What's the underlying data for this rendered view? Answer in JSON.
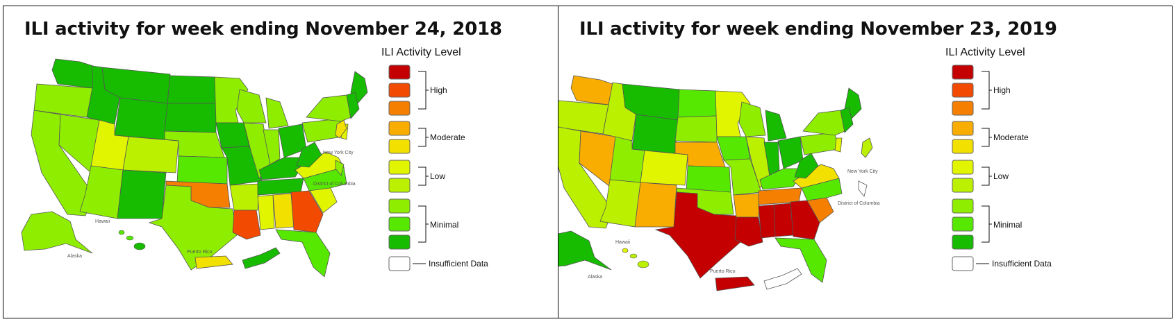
{
  "colors": {
    "high_1": "#c40000",
    "high_2": "#f24a00",
    "high_3": "#f57f00",
    "moderate_1": "#f9ad00",
    "moderate_2": "#f2e000",
    "low_1": "#e1f500",
    "low_2": "#bbf000",
    "minimal_1": "#8fee00",
    "minimal_2": "#56e800",
    "minimal_3": "#17bb00",
    "insufficient": "#ffffff"
  },
  "left": {
    "title": "ILI activity for week ending November 24, 2018",
    "legend_title": "ILI Activity Level",
    "legend_groups": {
      "high": "High",
      "moderate": "Moderate",
      "low": "Low",
      "minimal": "Minimal",
      "insufficient": "Insufficient Data"
    },
    "map_labels": {
      "new_york_city": "New York City",
      "district_of_columbia": "District of Columbia",
      "hawaii": "Hawaii",
      "alaska": "Alaska",
      "puerto_rico": "Puerto Rico"
    }
  },
  "right": {
    "title": "ILI activity for week ending November 23, 2019",
    "legend_title": "ILI Activity Level",
    "legend_groups": {
      "high": "High",
      "moderate": "Moderate",
      "low": "Low",
      "minimal": "Minimal",
      "insufficient": "Insufficient Data"
    },
    "map_labels": {
      "new_york_city": "New York City",
      "district_of_columbia": "District of Columbia",
      "hawaii": "Hawaii",
      "alaska": "Alaska",
      "puerto_rico": "Puerto Rico"
    }
  }
}
